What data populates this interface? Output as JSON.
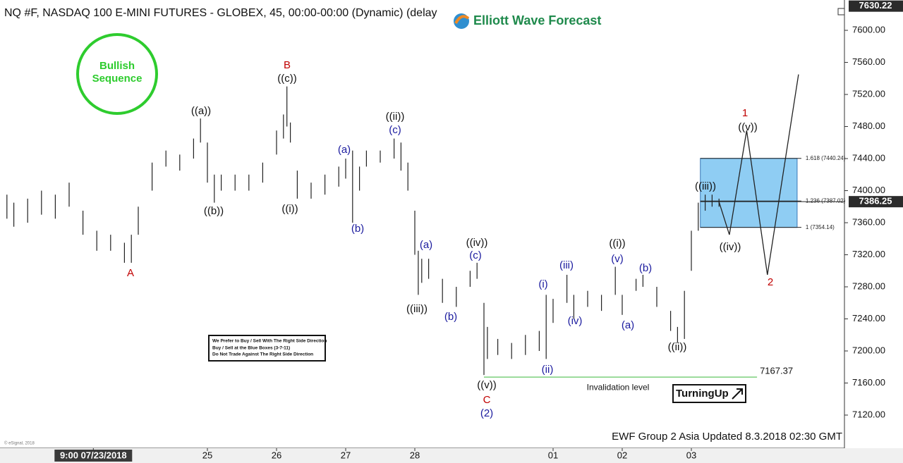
{
  "chart_data": {
    "type": "ohlc",
    "title": "NQ #F, NASDAQ 100 E-MINI FUTURES - GLOBEX, 45, 00:00-00:00 (Dynamic) (delay",
    "brand": "Elliott Wave Forecast",
    "badge": [
      "Bullish",
      "Sequence"
    ],
    "note": [
      "We Prefer to Buy / Sell With The Right Side Direction",
      "Buy / Sell at the Blue Boxes (3-7-11)",
      "Do Not Trade Against The Right Side Direction"
    ],
    "logo": "TurningUp",
    "footer": "EWF Group 2 Asia Updated 8.3.2018 02:30 GMT",
    "copyright": "© eSignal, 2018",
    "color": "#222222",
    "xlim": [
      0,
      12.194
    ],
    "ylim": [
      7082.2,
      7630.8
    ],
    "xticks": [
      {
        "value": 1.35,
        "label": "9:00 07/23/2018"
      },
      {
        "value": 3,
        "label": "25"
      },
      {
        "value": 4,
        "label": "26"
      },
      {
        "value": 5,
        "label": "27"
      },
      {
        "value": 6,
        "label": "28"
      },
      {
        "value": 8,
        "label": "01"
      },
      {
        "value": 9,
        "label": "02"
      },
      {
        "value": 10,
        "label": "03"
      }
    ],
    "yticks": [
      {
        "value": 7600,
        "label": "7600.00"
      },
      {
        "value": 7560,
        "label": "7560.00"
      },
      {
        "value": 7520,
        "label": "7520.00"
      },
      {
        "value": 7480,
        "label": "7480.00"
      },
      {
        "value": 7440,
        "label": "7440.00"
      },
      {
        "value": 7400,
        "label": "7400.00"
      },
      {
        "value": 7360,
        "label": "7360.00"
      },
      {
        "value": 7320,
        "label": "7320.00"
      },
      {
        "value": 7280,
        "label": "7280.00"
      },
      {
        "value": 7240,
        "label": "7240.00"
      },
      {
        "value": 7200,
        "label": "7200.00"
      },
      {
        "value": 7160,
        "label": "7160.00"
      },
      {
        "value": 7120,
        "label": "7120.00"
      }
    ],
    "top_price": 7630.22,
    "last_price": 7386.25,
    "bars": {
      "x": [
        0.1,
        0.2,
        0.4,
        0.6,
        0.8,
        1.0,
        1.2,
        1.4,
        1.6,
        1.8,
        1.9,
        2.0,
        2.2,
        2.4,
        2.6,
        2.8,
        2.9,
        3.0,
        3.1,
        3.2,
        3.4,
        3.6,
        3.8,
        4.0,
        4.1,
        4.15,
        4.2,
        4.3,
        4.5,
        4.7,
        4.9,
        5.0,
        5.1,
        5.2,
        5.3,
        5.5,
        5.7,
        5.8,
        5.9,
        6.0,
        6.05,
        6.1,
        6.2,
        6.4,
        6.6,
        6.8,
        6.9,
        7.0,
        7.05,
        7.2,
        7.4,
        7.6,
        7.8,
        7.9,
        8.0,
        8.2,
        8.3,
        8.5,
        8.7,
        8.9,
        9.0,
        9.2,
        9.3,
        9.5,
        9.7,
        9.8,
        9.9,
        10.0,
        10.1,
        10.2,
        10.3,
        10.4
      ],
      "high": [
        7395,
        7385,
        7390,
        7400,
        7395,
        7410,
        7375,
        7350,
        7345,
        7335,
        7345,
        7380,
        7435,
        7450,
        7445,
        7465,
        7490,
        7460,
        7420,
        7420,
        7420,
        7420,
        7435,
        7475,
        7495,
        7530,
        7485,
        7425,
        7410,
        7420,
        7430,
        7440,
        7450,
        7430,
        7450,
        7450,
        7465,
        7460,
        7435,
        7375,
        7325,
        7315,
        7315,
        7290,
        7280,
        7300,
        7310,
        7260,
        7230,
        7215,
        7210,
        7220,
        7225,
        7270,
        7265,
        7295,
        7270,
        7275,
        7270,
        7305,
        7270,
        7290,
        7295,
        7280,
        7250,
        7230,
        7275,
        7350,
        7385,
        7395,
        7395,
        7390
      ],
      "low": [
        7365,
        7355,
        7360,
        7370,
        7365,
        7380,
        7345,
        7325,
        7325,
        7310,
        7310,
        7345,
        7400,
        7430,
        7425,
        7440,
        7460,
        7410,
        7385,
        7400,
        7400,
        7400,
        7410,
        7445,
        7465,
        7480,
        7460,
        7390,
        7390,
        7395,
        7405,
        7415,
        7360,
        7400,
        7430,
        7435,
        7440,
        7425,
        7400,
        7320,
        7270,
        7285,
        7290,
        7260,
        7255,
        7280,
        7290,
        7170,
        7190,
        7195,
        7190,
        7195,
        7200,
        7190,
        7235,
        7260,
        7240,
        7255,
        7250,
        7270,
        7245,
        7275,
        7280,
        7255,
        7225,
        7210,
        7215,
        7300,
        7350,
        7375,
        7380,
        7380
      ]
    },
    "projection": {
      "x": [
        10.4,
        10.55,
        10.8,
        11.1,
        11.55
      ],
      "values": [
        7386,
        7345,
        7475,
        7295,
        7545
      ]
    },
    "box": {
      "x": [
        10.13,
        11.53
      ],
      "values": [
        7354.14,
        7440.24
      ],
      "color": "#8fcdf3"
    },
    "fib_levels": [
      {
        "value": 7440.24,
        "label": "1.618 (7440.24)"
      },
      {
        "value": 7387.02,
        "label": "1.236 (7387.02)"
      },
      {
        "value": 7354.14,
        "label": "1 (7354.14)"
      }
    ],
    "invalidation": {
      "value": 7167.37,
      "label": "7167.37",
      "text": "Invalidation level",
      "x": [
        7.0,
        10.95
      ],
      "color": "#7ccf7c"
    },
    "annotations": [
      {
        "text": "A",
        "color": "#c00000"
      },
      {
        "text": "B",
        "color": "#c00000"
      },
      {
        "text": "((c))",
        "color": "#111111"
      },
      {
        "text": "((a))",
        "color": "#111111"
      },
      {
        "text": "((b))",
        "color": "#111111"
      },
      {
        "text": "((i))",
        "color": "#111111"
      },
      {
        "text": "((ii))",
        "color": "#111111"
      },
      {
        "text": "(c)",
        "color": "#1a1a9e"
      },
      {
        "text": "(a)",
        "color": "#1a1a9e"
      },
      {
        "text": "(b)",
        "color": "#1a1a9e"
      },
      {
        "text": "(a)",
        "color": "#1a1a9e"
      },
      {
        "text": "((iii))",
        "color": "#111111"
      },
      {
        "text": "(b)",
        "color": "#1a1a9e"
      },
      {
        "text": "((iv))",
        "color": "#111111"
      },
      {
        "text": "(c)",
        "color": "#1a1a9e"
      },
      {
        "text": "((v))",
        "color": "#111111"
      },
      {
        "text": "C",
        "color": "#c00000"
      },
      {
        "text": "(2)",
        "color": "#1a1a9e"
      },
      {
        "text": "(i)",
        "color": "#1a1a9e"
      },
      {
        "text": "(ii)",
        "color": "#1a1a9e"
      },
      {
        "text": "(iii)",
        "color": "#1a1a9e"
      },
      {
        "text": "(iv)",
        "color": "#1a1a9e"
      },
      {
        "text": "((i))",
        "color": "#111111"
      },
      {
        "text": "(v)",
        "color": "#1a1a9e"
      },
      {
        "text": "(a)",
        "color": "#1a1a9e"
      },
      {
        "text": "(b)",
        "color": "#1a1a9e"
      },
      {
        "text": "((ii))",
        "color": "#111111"
      },
      {
        "text": "((iii))",
        "color": "#111111"
      },
      {
        "text": "((iv))",
        "color": "#111111"
      },
      {
        "text": "1",
        "color": "#c00000"
      },
      {
        "text": "((v))",
        "color": "#111111"
      },
      {
        "text": "2",
        "color": "#c00000"
      }
    ]
  }
}
